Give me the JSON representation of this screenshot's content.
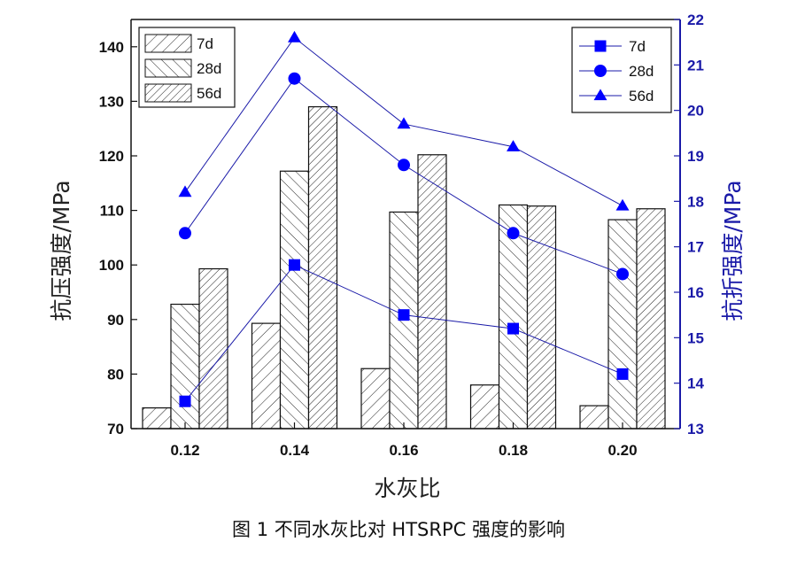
{
  "chart_data": {
    "type": "bar+line",
    "categories": [
      "0.12",
      "0.14",
      "0.16",
      "0.18",
      "0.20"
    ],
    "xlabel": "水灰比",
    "y_left": {
      "label": "抗压强度/MPa",
      "range": [
        70,
        145
      ],
      "ticks": [
        "70",
        "80",
        "90",
        "100",
        "110",
        "120",
        "130",
        "140"
      ]
    },
    "y_right": {
      "label": "抗折强度/MPa",
      "range": [
        13,
        22
      ],
      "ticks": [
        "13",
        "14",
        "15",
        "16",
        "17",
        "18",
        "19",
        "20",
        "21",
        "22"
      ],
      "color": "#1a1aa8"
    },
    "bar_series": [
      {
        "name": "7d",
        "values": [
          73.8,
          89.3,
          81.0,
          78.0,
          74.2
        ],
        "pattern": "forward-hatch"
      },
      {
        "name": "28d",
        "values": [
          92.8,
          117.2,
          109.7,
          111.0,
          108.3
        ],
        "pattern": "back-hatch"
      },
      {
        "name": "56d",
        "values": [
          99.3,
          129.0,
          120.2,
          110.8,
          110.3
        ],
        "pattern": "dense-hatch"
      }
    ],
    "line_series": [
      {
        "name": "7d",
        "marker": "square",
        "values": [
          13.6,
          16.6,
          15.5,
          15.2,
          14.2
        ]
      },
      {
        "name": "28d",
        "marker": "circle",
        "values": [
          17.3,
          20.7,
          18.8,
          17.3,
          16.4
        ]
      },
      {
        "name": "56d",
        "marker": "triangle",
        "values": [
          18.2,
          21.6,
          19.7,
          19.2,
          17.9
        ]
      }
    ],
    "legend_left": {
      "position": "top-left",
      "entries": [
        "7d",
        "28d",
        "56d"
      ]
    },
    "legend_right": {
      "position": "top-right",
      "entries": [
        "7d",
        "28d",
        "56d"
      ]
    },
    "line_color": "#1a1aa8",
    "marker_color": "#0000ff",
    "grid": false
  },
  "caption": "图 1   不同水灰比对 HTSRPC 强度的影响"
}
